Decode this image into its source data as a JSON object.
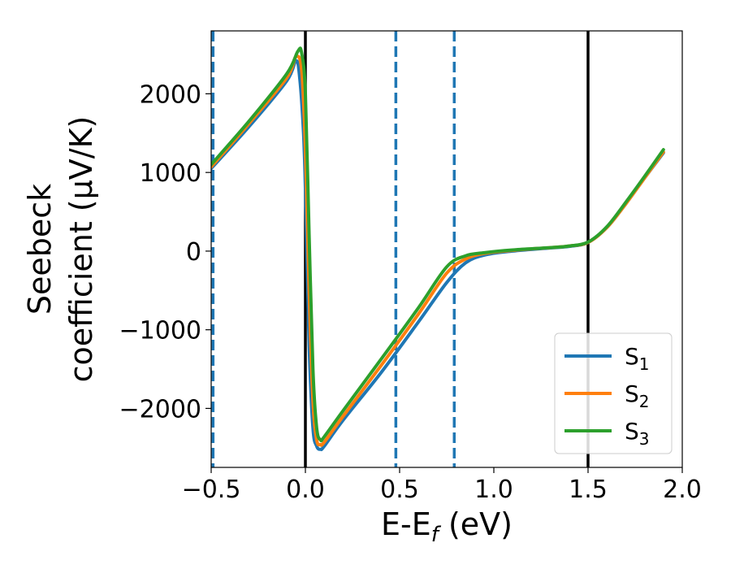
{
  "chart_data": {
    "type": "line",
    "xlabel": "E-E",
    "xlabel_sub": "f",
    "xlabel_unit": " (eV)",
    "ylabel_line1": "Seebeck",
    "ylabel_line2": "coefficient  (μV/K)",
    "xlim": [
      -0.5,
      2.0
    ],
    "ylim": [
      -2750,
      2800
    ],
    "xticks": [
      -0.5,
      0.0,
      0.5,
      1.0,
      1.5,
      2.0
    ],
    "xtick_labels": [
      "−0.5",
      "0.0",
      "0.5",
      "1.0",
      "1.5",
      "2.0"
    ],
    "yticks": [
      -2000,
      -1000,
      0,
      1000,
      2000
    ],
    "ytick_labels": [
      "−2000",
      "−1000",
      "0",
      "1000",
      "2000"
    ],
    "grid": false,
    "legend_position": "bottom-right",
    "vertical_lines": [
      {
        "x": 0.0,
        "style": "solid",
        "color": "#000000"
      },
      {
        "x": 1.5,
        "style": "solid",
        "color": "#000000"
      },
      {
        "x": -0.49,
        "style": "dashed",
        "color": "#1f77b4"
      },
      {
        "x": 0.48,
        "style": "dashed",
        "color": "#1f77b4"
      },
      {
        "x": 0.79,
        "style": "dashed",
        "color": "#1f77b4"
      }
    ],
    "series": [
      {
        "name": "S",
        "name_sub": "1",
        "color": "#1f77b4",
        "x": [
          -0.5,
          -0.3,
          -0.1,
          -0.05,
          -0.03,
          -0.01,
          0.0,
          0.02,
          0.04,
          0.06,
          0.08,
          0.1,
          0.2,
          0.4,
          0.6,
          0.75,
          0.85,
          0.95,
          1.1,
          1.3,
          1.4,
          1.5,
          1.6,
          1.7,
          1.8,
          1.9
        ],
        "values": [
          1050,
          1580,
          2160,
          2420,
          2200,
          1500,
          800,
          -1200,
          -2250,
          -2480,
          -2520,
          -2480,
          -2150,
          -1550,
          -900,
          -400,
          -150,
          -50,
          0,
          40,
          60,
          110,
          300,
          600,
          930,
          1250
        ]
      },
      {
        "name": "S",
        "name_sub": "2",
        "color": "#ff7f0e",
        "x": [
          -0.5,
          -0.3,
          -0.1,
          -0.05,
          -0.02,
          0.0,
          0.02,
          0.04,
          0.06,
          0.08,
          0.1,
          0.2,
          0.4,
          0.6,
          0.75,
          0.85,
          0.95,
          1.1,
          1.3,
          1.4,
          1.5,
          1.6,
          1.7,
          1.8,
          1.9
        ],
        "values": [
          1070,
          1620,
          2200,
          2470,
          2300,
          1300,
          -500,
          -1900,
          -2400,
          -2460,
          -2430,
          -2100,
          -1460,
          -800,
          -280,
          -100,
          -30,
          10,
          45,
          65,
          110,
          300,
          600,
          930,
          1260
        ]
      },
      {
        "name": "S",
        "name_sub": "3",
        "color": "#2ca02c",
        "x": [
          -0.5,
          -0.3,
          -0.1,
          -0.04,
          -0.02,
          0.0,
          0.02,
          0.04,
          0.06,
          0.08,
          0.1,
          0.2,
          0.4,
          0.6,
          0.75,
          0.85,
          0.95,
          1.1,
          1.3,
          1.4,
          1.5,
          1.6,
          1.7,
          1.8,
          1.9
        ],
        "values": [
          1100,
          1650,
          2250,
          2540,
          2520,
          2000,
          200,
          -1500,
          -2250,
          -2400,
          -2360,
          -2030,
          -1380,
          -720,
          -200,
          -60,
          -20,
          15,
          45,
          65,
          115,
          310,
          620,
          950,
          1290
        ]
      }
    ]
  }
}
